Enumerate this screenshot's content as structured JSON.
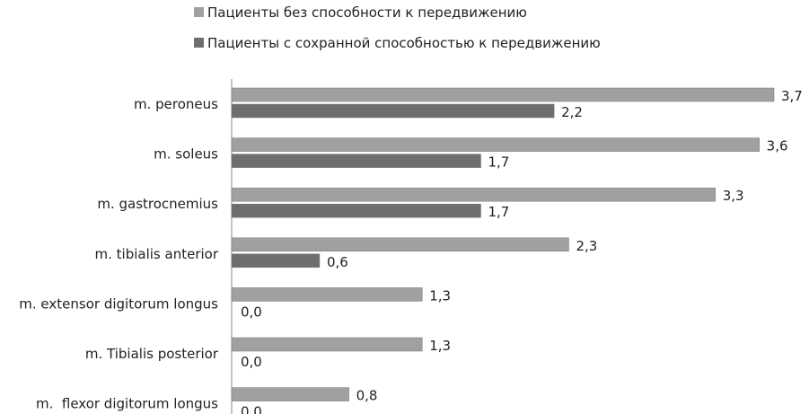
{
  "chart_data": {
    "type": "bar",
    "orientation": "horizontal",
    "title": "",
    "xlabel": "",
    "ylabel": "",
    "xlim": [
      0,
      3.7
    ],
    "grid": false,
    "legend_placement": "top",
    "categories": [
      "m. peroneus",
      "m. soleus",
      "m. gastrocnemius",
      "m. tibialis anterior",
      "m. extensor digitorum longus",
      "m. Tibialis posterior",
      "m.  flexor digitorum longus"
    ],
    "series": [
      {
        "name": "Пациенты без способности к передвижению",
        "color": "#a0a0a0",
        "values": [
          3.7,
          3.6,
          3.3,
          2.3,
          1.3,
          1.3,
          0.8
        ],
        "labels": [
          "3,7",
          "3,6",
          "3,3",
          "2,3",
          "1,3",
          "1,3",
          "0,8"
        ]
      },
      {
        "name": "Пациенты с сохранной способностью к передвижению",
        "color": "#6e6e6e",
        "values": [
          2.2,
          1.7,
          1.7,
          0.6,
          0.0,
          0.0,
          0.0
        ],
        "labels": [
          "2,2",
          "1,7",
          "1,7",
          "0,6",
          "0,0",
          "0,0",
          "0,0"
        ]
      }
    ]
  }
}
